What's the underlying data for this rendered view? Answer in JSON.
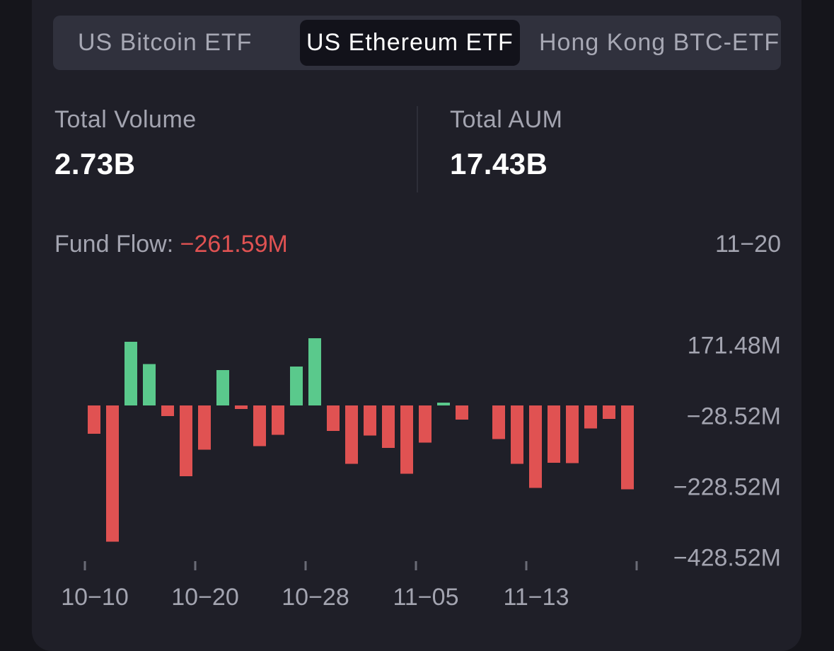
{
  "tabs": [
    {
      "label": "US Bitcoin ETF",
      "active": false
    },
    {
      "label": "US Ethereum ETF",
      "active": true
    },
    {
      "label": "Hong Kong BTC-ETF",
      "active": false
    }
  ],
  "stats": {
    "volume_label": "Total Volume",
    "volume_value": "2.73B",
    "aum_label": "Total AUM",
    "aum_value": "17.43B"
  },
  "fund_flow": {
    "label": "Fund Flow: ",
    "value": "−261.59M",
    "date": "11−20"
  },
  "colors": {
    "positive": "#5ac98c",
    "negative": "#e05252",
    "accent_text": "#e05252"
  },
  "chart_data": {
    "type": "bar",
    "y_tick_labels": [
      "171.48M",
      "−28.52M",
      "−228.52M",
      "−428.52M"
    ],
    "y_tick_values": [
      171.48,
      -28.52,
      -228.52,
      -428.52
    ],
    "x_tick_labels": [
      "10−10",
      "10−20",
      "10−28",
      "11−05",
      "11−13"
    ],
    "values": [
      -80,
      -385,
      180,
      117,
      -30,
      -200,
      -125,
      100,
      -10,
      -115,
      -83,
      110,
      190,
      -72,
      -165,
      -85,
      -120,
      -193,
      -105,
      3,
      -40,
      null,
      -95,
      -165,
      -233,
      -162,
      -163,
      -65,
      -38,
      -237
    ],
    "grid": false
  }
}
